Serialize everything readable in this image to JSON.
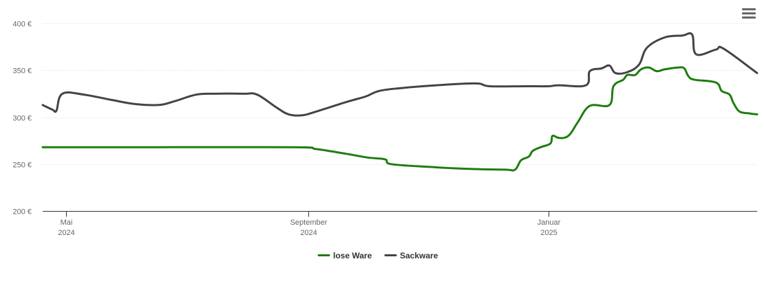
{
  "chart_data": {
    "type": "line",
    "y_unit": "€",
    "ylim": [
      200,
      400
    ],
    "y_ticks": [
      {
        "value": 400,
        "label": "400 €"
      },
      {
        "value": 350,
        "label": "350 €"
      },
      {
        "value": 300,
        "label": "300 €"
      },
      {
        "value": 250,
        "label": "250 €"
      },
      {
        "value": 200,
        "label": "200 €"
      }
    ],
    "x_range": [
      "2024-04-19",
      "2025-04-17"
    ],
    "x_ticks": [
      {
        "date": "2024-05-01",
        "line1": "Mai",
        "line2": "2024"
      },
      {
        "date": "2024-09-01",
        "line1": "September",
        "line2": "2024"
      },
      {
        "date": "2025-01-01",
        "line1": "Januar",
        "line2": "2025"
      }
    ],
    "grid": true,
    "legend": "bottom-center",
    "series": [
      {
        "name": "lose Ware",
        "color": "#1e7d0f",
        "points": [
          [
            "2024-04-19",
            268
          ],
          [
            "2024-06-15",
            268
          ],
          [
            "2024-08-25",
            268
          ],
          [
            "2024-09-05",
            266
          ],
          [
            "2024-09-20",
            261
          ],
          [
            "2024-10-01",
            257
          ],
          [
            "2024-10-10",
            255
          ],
          [
            "2024-10-13",
            250
          ],
          [
            "2024-11-01",
            247
          ],
          [
            "2024-11-20",
            245
          ],
          [
            "2024-12-10",
            244
          ],
          [
            "2024-12-15",
            244
          ],
          [
            "2024-12-18",
            254
          ],
          [
            "2024-12-22",
            258
          ],
          [
            "2024-12-24",
            264
          ],
          [
            "2024-12-28",
            268
          ],
          [
            "2025-01-02",
            272
          ],
          [
            "2025-01-03",
            280
          ],
          [
            "2025-01-06",
            278
          ],
          [
            "2025-01-09",
            278
          ],
          [
            "2025-01-12",
            282
          ],
          [
            "2025-01-16",
            295
          ],
          [
            "2025-01-22",
            312
          ],
          [
            "2025-02-01",
            313
          ],
          [
            "2025-02-03",
            333
          ],
          [
            "2025-02-08",
            340
          ],
          [
            "2025-02-10",
            345
          ],
          [
            "2025-02-14",
            345
          ],
          [
            "2025-02-17",
            351
          ],
          [
            "2025-02-21",
            353
          ],
          [
            "2025-02-25",
            349
          ],
          [
            "2025-03-01",
            351
          ],
          [
            "2025-03-08",
            353
          ],
          [
            "2025-03-11",
            352
          ],
          [
            "2025-03-13",
            344
          ],
          [
            "2025-03-16",
            340
          ],
          [
            "2025-03-27",
            337
          ],
          [
            "2025-03-30",
            328
          ],
          [
            "2025-04-03",
            324
          ],
          [
            "2025-04-05",
            315
          ],
          [
            "2025-04-08",
            306
          ],
          [
            "2025-04-13",
            304
          ],
          [
            "2025-04-17",
            303
          ]
        ]
      },
      {
        "name": "Sackware",
        "color": "#434348",
        "points": [
          [
            "2024-04-19",
            313
          ],
          [
            "2024-04-24",
            308
          ],
          [
            "2024-04-26",
            307
          ],
          [
            "2024-04-29",
            325
          ],
          [
            "2024-05-10",
            324
          ],
          [
            "2024-05-25",
            318
          ],
          [
            "2024-06-05",
            314
          ],
          [
            "2024-06-17",
            313
          ],
          [
            "2024-06-25",
            317
          ],
          [
            "2024-07-06",
            324
          ],
          [
            "2024-07-15",
            325
          ],
          [
            "2024-07-30",
            325
          ],
          [
            "2024-08-06",
            324
          ],
          [
            "2024-08-16",
            310
          ],
          [
            "2024-08-22",
            303
          ],
          [
            "2024-08-29",
            302
          ],
          [
            "2024-09-05",
            306
          ],
          [
            "2024-09-20",
            316
          ],
          [
            "2024-09-30",
            322
          ],
          [
            "2024-10-07",
            328
          ],
          [
            "2024-10-18",
            331
          ],
          [
            "2024-11-05",
            334
          ],
          [
            "2024-11-25",
            336
          ],
          [
            "2024-12-02",
            333
          ],
          [
            "2024-12-20",
            333
          ],
          [
            "2025-01-01",
            333
          ],
          [
            "2025-01-06",
            334
          ],
          [
            "2025-01-20",
            334
          ],
          [
            "2025-01-22",
            349
          ],
          [
            "2025-01-28",
            352
          ],
          [
            "2025-02-01",
            355
          ],
          [
            "2025-02-04",
            347
          ],
          [
            "2025-02-10",
            348
          ],
          [
            "2025-02-16",
            356
          ],
          [
            "2025-02-20",
            374
          ],
          [
            "2025-03-01",
            385
          ],
          [
            "2025-03-10",
            387
          ],
          [
            "2025-03-15",
            388
          ],
          [
            "2025-03-17",
            367
          ],
          [
            "2025-03-27",
            372
          ],
          [
            "2025-03-31",
            373
          ],
          [
            "2025-04-17",
            347
          ]
        ]
      }
    ]
  }
}
